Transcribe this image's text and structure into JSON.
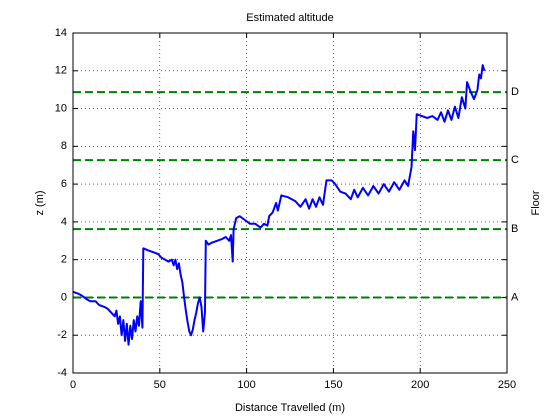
{
  "chart_data": {
    "type": "line",
    "title": "Estimated altitude",
    "xlabel": "Distance Travelled (m)",
    "ylabel": "z (m)",
    "y2label": "Floor",
    "xlim": [
      0,
      250
    ],
    "ylim": [
      -4,
      14
    ],
    "xticks": [
      0,
      50,
      100,
      150,
      200,
      250
    ],
    "yticks": [
      -4,
      -2,
      0,
      2,
      4,
      6,
      8,
      10,
      12,
      14
    ],
    "grid": true,
    "floors": [
      {
        "name": "A",
        "value": 0
      },
      {
        "name": "B",
        "value": 3.62
      },
      {
        "name": "C",
        "value": 7.27
      },
      {
        "name": "D",
        "value": 10.87
      }
    ],
    "floor_color": "#008000",
    "series": [
      {
        "color": "#0000ff",
        "x": [
          0,
          3,
          5,
          8,
          10,
          13,
          15,
          18,
          20,
          22,
          24,
          25,
          26,
          27,
          28,
          29,
          30,
          31,
          32,
          33,
          34,
          35,
          36,
          37,
          38,
          39,
          40,
          40.5,
          43,
          46,
          49,
          51,
          53,
          55,
          57,
          58,
          59,
          60,
          61,
          62,
          63,
          64,
          65,
          66,
          67,
          68,
          69,
          70,
          71,
          72,
          73,
          74,
          75,
          76,
          76.5,
          78,
          80,
          83,
          86,
          88,
          90,
          91,
          91.5,
          92,
          92.5,
          94,
          96,
          99,
          102,
          105,
          108,
          110,
          112,
          113,
          115,
          117,
          118,
          120,
          124,
          128,
          131,
          134,
          136,
          138,
          140,
          142,
          144,
          146,
          149,
          151,
          154,
          157,
          160,
          162,
          164,
          167,
          170,
          173,
          176,
          179,
          182,
          185,
          188,
          191,
          193,
          195,
          196,
          197,
          198,
          201,
          204,
          207,
          210,
          212,
          214,
          216,
          218,
          220,
          222,
          224,
          226,
          227,
          229,
          231,
          233,
          234,
          235,
          236,
          237
        ],
        "values": [
          0.3,
          0.2,
          0.1,
          -0.1,
          -0.2,
          -0.2,
          -0.4,
          -0.5,
          -0.6,
          -0.8,
          -1.0,
          -0.7,
          -1.4,
          -1.0,
          -2.0,
          -1.2,
          -2.3,
          -1.4,
          -2.5,
          -1.5,
          -2.2,
          -1.2,
          -1.8,
          -1.0,
          -1.5,
          -0.2,
          -1.6,
          2.6,
          2.5,
          2.4,
          2.3,
          2.1,
          2.0,
          1.9,
          2.0,
          1.7,
          2.0,
          1.5,
          1.8,
          1.2,
          0.8,
          0.0,
          -0.7,
          -1.3,
          -1.8,
          -2.0,
          -1.7,
          -1.2,
          -0.8,
          -0.3,
          0,
          -0.5,
          -1.8,
          -0.8,
          3.0,
          2.8,
          2.9,
          3.0,
          3.1,
          3.2,
          3.0,
          3.3,
          2.6,
          1.9,
          3.6,
          4.2,
          4.3,
          4.1,
          3.9,
          3.9,
          3.7,
          3.9,
          3.8,
          4.3,
          4.5,
          5.0,
          4.6,
          5.4,
          5.3,
          5.1,
          4.8,
          5.2,
          4.7,
          5.2,
          4.8,
          5.3,
          4.9,
          6.2,
          6.2,
          6.0,
          5.6,
          5.5,
          5.2,
          5.7,
          5.3,
          5.8,
          5.4,
          5.9,
          5.5,
          6.0,
          5.6,
          6.1,
          5.7,
          6.2,
          5.9,
          6.9,
          8.8,
          7.8,
          9.7,
          9.6,
          9.5,
          9.6,
          9.4,
          9.8,
          9.3,
          9.9,
          9.4,
          10.1,
          9.5,
          10.6,
          10.0,
          11.4,
          10.9,
          10.5,
          11.0,
          11.8,
          11.6,
          12.3,
          12.0
        ]
      }
    ]
  }
}
